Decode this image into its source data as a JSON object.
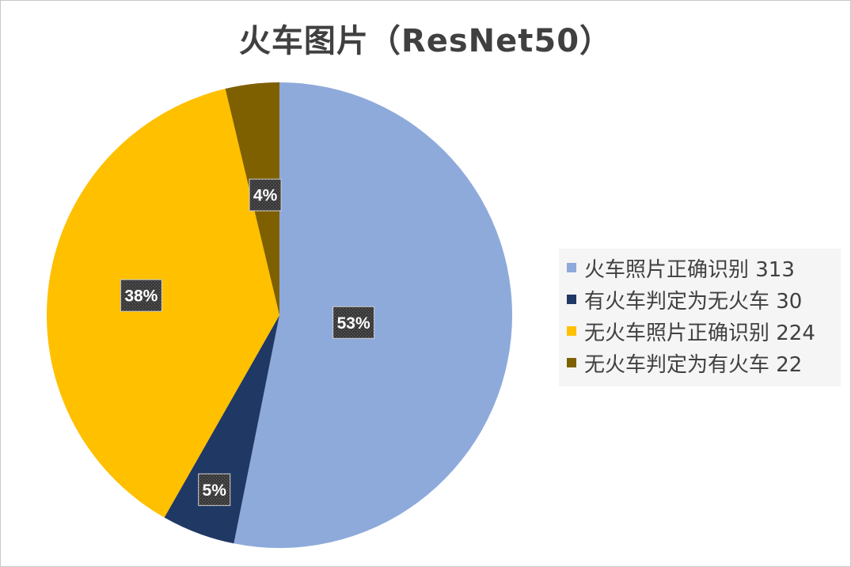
{
  "chart_data": {
    "type": "pie",
    "title": "火车图片（ResNet50）",
    "legend_position": "right",
    "slices": [
      {
        "name": "火车照片正确识别 313",
        "value": 313,
        "percent_label": "53%",
        "color": "#8eaadb"
      },
      {
        "name": "有火车判定为无火车 30",
        "value": 30,
        "percent_label": "5%",
        "color": "#203864"
      },
      {
        "name": "无火车照片正确识别 224",
        "value": 224,
        "percent_label": "38%",
        "color": "#ffc000"
      },
      {
        "name": "无火车判定为有火车 22",
        "value": 22,
        "percent_label": "4%",
        "color": "#7f6000"
      }
    ]
  }
}
